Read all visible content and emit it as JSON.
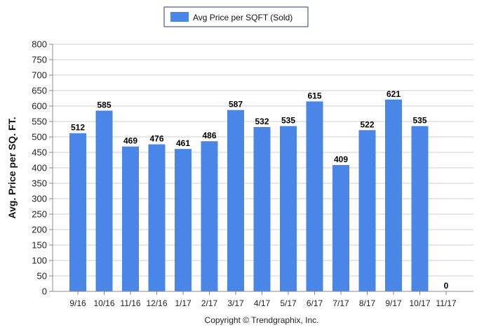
{
  "chart_data": {
    "type": "bar",
    "categories": [
      "9/16",
      "10/16",
      "11/16",
      "12/16",
      "1/17",
      "2/17",
      "3/17",
      "4/17",
      "5/17",
      "6/17",
      "7/17",
      "8/17",
      "9/17",
      "10/17",
      "11/17"
    ],
    "series": [
      {
        "name": "Avg Price per SQFT (Sold)",
        "values": [
          512,
          585,
          469,
          476,
          461,
          486,
          587,
          532,
          535,
          615,
          409,
          522,
          621,
          535,
          0
        ],
        "color": "#4a86e8"
      }
    ],
    "data_labels": [
      "512",
      "585",
      "469",
      "476",
      "461",
      "486",
      "587",
      "532",
      "535",
      "615",
      "409",
      "522",
      "621",
      "535",
      "0"
    ],
    "ylabel": "Avg. Price per SQ. FT.",
    "xlabel": "",
    "ylim": [
      0,
      800
    ],
    "yticks": [
      0,
      50,
      100,
      150,
      200,
      250,
      300,
      350,
      400,
      450,
      500,
      550,
      600,
      650,
      700,
      750,
      800
    ],
    "grid": true,
    "legend_position": "top-center"
  },
  "footer": {
    "copyright": "Copyright © Trendgraphix, Inc."
  }
}
